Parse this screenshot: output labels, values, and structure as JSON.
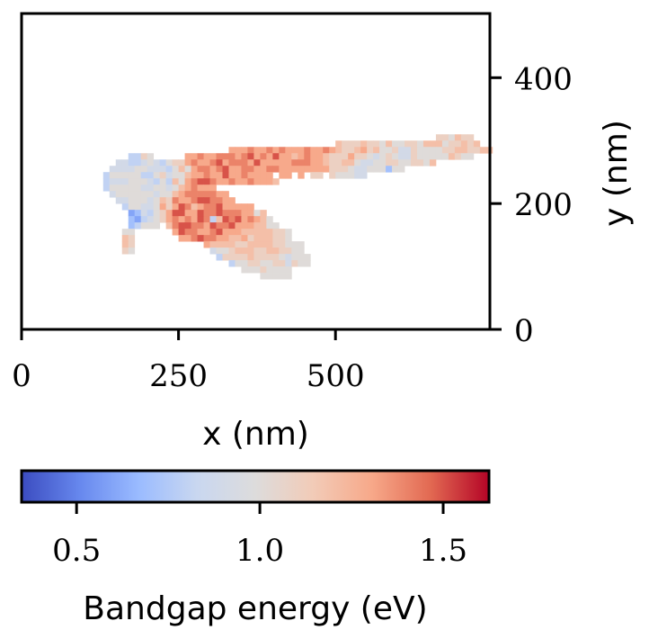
{
  "chart_data": {
    "type": "heatmap",
    "title": "",
    "xlabel": "x (nm)",
    "ylabel": "y (nm)",
    "xlim": [
      0,
      746
    ],
    "ylim": [
      0,
      502
    ],
    "x_ticks": [
      0,
      250,
      500
    ],
    "x_tick_labels": [
      "0",
      "250",
      "500"
    ],
    "y_ticks": [
      0,
      200,
      400
    ],
    "y_tick_labels": [
      "0",
      "200",
      "400"
    ],
    "y_axis_side": "right",
    "grid": false,
    "cell_size_nm": 10,
    "grid_origin_nm": {
      "x": 70,
      "y": 310
    },
    "value_key": {
      "a": 0.4,
      "b": 0.5,
      "c": 0.6,
      "d": 0.7,
      "e": 0.8,
      "f": 0.9,
      "g": 1.0,
      "h": 1.1,
      "i": 1.2,
      "j": 1.3,
      "k": 1.4,
      "l": 1.5,
      "m": 1.6
    },
    "rows_top_to_bottom": [
      "...........................................................hhgihh..",
      "...........................................ihhhihhgigghhgiiighhihi..",
      "..........................jjjkjjkjkjjjkjjkjihhijhigghffhgggghhiihhii",
      "..........eehg.....jjkjjkkkjkljkjljjijkjjihhhjhhgfghgffhgggggihgg..",
      "........ffeefgfeghhjkjjkljkkkjljjjjjkkkjjihhiigffgghhgghhgi........",
      ".......ffffggfffegigjkkjkljjkkjjkkjjjjjjjjhhhgffgggdgg.............",
      "......egggggeeghfggijjkjjljjkjjjj.jj.j.hh.hgggff...................",
      "......efffgggfegeigjkllkjjkjjkjjji.................................",
      "......egggggffggfgijkjjj...........................................",
      ".......fggggggfggijkkkkkjj.........................................",
      "........ffgggfgihkjjkllkkjj........................................",
      ".........eggffgjhjlkijkkljjjjj.....................................",
      "..........cdfeghjlljjlkklkkkjjgi..................................",
      "..........dcefghjkjkjlkeilkljkjig..................................",
      "..........deggg.ikllkkjlkkljjjiigg.................................",
      ".........gg......jlkkjjkljjjiiiiihhg...............................",
      ".........ih.......jjklkkjjiijhiiihhg...............................",
      ".........ih...........jiiiihhiiiihhggg.............................",
      ".........hg............fgghiiihhiihhgg.............................",
      "........................ehhhhihhhhgfggg............................",
      "..........................egghhgghhfhgg............................",
      "............................ggghgggg...............................",
      "...............................ggggg..............................."
    ],
    "colorbar": {
      "label": "Bandgap energy (eV)",
      "colormap": "coolwarm",
      "range": [
        0.35,
        1.625
      ],
      "ticks": [
        0.5,
        1.0,
        1.5
      ],
      "tick_labels": [
        "0.5",
        "1.0",
        "1.5"
      ],
      "placement": "bottom"
    }
  },
  "colors": {
    "axis": "#000000",
    "cmap_stops": [
      "#3b4cc0",
      "#6788ee",
      "#9abbff",
      "#c9d7f0",
      "#dddcdc",
      "#f2cbb7",
      "#f7a889",
      "#e26952",
      "#b40426"
    ]
  }
}
